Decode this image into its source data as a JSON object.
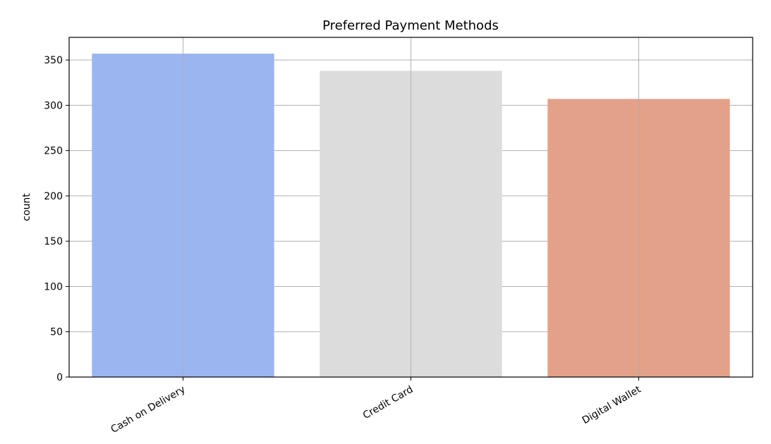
{
  "chart_data": {
    "type": "bar",
    "title": "Preferred Payment Methods",
    "xlabel": "",
    "ylabel": "count",
    "categories": [
      "Cash on Delivery",
      "Credit Card",
      "Digital Wallet"
    ],
    "values": [
      357,
      338,
      307
    ],
    "colors": [
      "#9bb5f0",
      "#dcdcdc",
      "#e3a189"
    ],
    "ylim": [
      0,
      375
    ],
    "yticks": [
      0,
      50,
      100,
      150,
      200,
      250,
      300,
      350
    ],
    "grid": true,
    "xtick_rotation": -30
  }
}
